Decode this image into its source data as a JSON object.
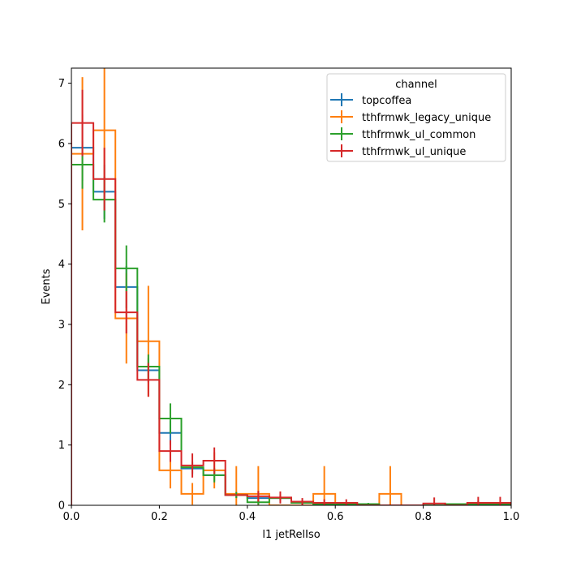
{
  "chart_data": {
    "type": "histogram",
    "xlabel": "l1 jetRelIso",
    "ylabel": "Events",
    "xlim": [
      0,
      1.0
    ],
    "ylim": [
      0,
      7.25
    ],
    "xticks": [
      0,
      0.2,
      0.4,
      0.6,
      0.8,
      1.0
    ],
    "xtick_labels": [
      "0.0",
      "0.2",
      "0.4",
      "0.6",
      "0.8",
      "1.0"
    ],
    "yticks": [
      0,
      1,
      2,
      3,
      4,
      5,
      6,
      7
    ],
    "ytick_labels": [
      "0",
      "1",
      "2",
      "3",
      "4",
      "5",
      "6",
      "7"
    ],
    "bin_edges": [
      0.0,
      0.05,
      0.1,
      0.15,
      0.2,
      0.25,
      0.3,
      0.35,
      0.4,
      0.45,
      0.5,
      0.55,
      0.6,
      0.65,
      0.7,
      0.75,
      0.8,
      0.85,
      0.9,
      0.95,
      1.0
    ],
    "legend": {
      "title": "channel",
      "location": "upper right"
    },
    "series": [
      {
        "name": "topcoffea",
        "color": "#1f77b4",
        "values": [
          5.93,
          5.2,
          3.62,
          2.24,
          1.2,
          0.61,
          0.5,
          0.17,
          0.12,
          0.12,
          0.04,
          0.02,
          0.02,
          0.0,
          0.0,
          0.0,
          0.0,
          0.0,
          0.02,
          0.02
        ],
        "errors": [
          0.55,
          0.45,
          0.35,
          0.2,
          0.2,
          0.1,
          0.1,
          0.05,
          0.05,
          0.04,
          0.03,
          0.02,
          0.02,
          0.0,
          0.0,
          0.0,
          0.0,
          0.0,
          0.02,
          0.02
        ]
      },
      {
        "name": "tthfrmwk_legacy_unique",
        "color": "#ff7f0e",
        "values": [
          5.83,
          6.22,
          3.1,
          2.72,
          0.58,
          0.19,
          0.58,
          0.19,
          0.19,
          0.0,
          0.0,
          0.19,
          0.0,
          0.0,
          0.19,
          0.0,
          0.0,
          0.0,
          0.0,
          0.0
        ],
        "errors": [
          1.27,
          1.05,
          0.75,
          0.92,
          0.3,
          0.18,
          0.3,
          0.46,
          0.46,
          0.0,
          0.0,
          0.46,
          0.0,
          0.0,
          0.46,
          0.0,
          0.0,
          0.0,
          0.0,
          0.0
        ]
      },
      {
        "name": "tthfrmwk_ul_common",
        "color": "#2ca02c",
        "values": [
          5.65,
          5.07,
          3.93,
          2.3,
          1.44,
          0.63,
          0.5,
          0.17,
          0.05,
          0.12,
          0.04,
          0.02,
          0.02,
          0.02,
          0.0,
          0.0,
          0.0,
          0.02,
          0.02,
          0.02
        ],
        "errors": [
          0.4,
          0.38,
          0.38,
          0.2,
          0.25,
          0.1,
          0.12,
          0.05,
          0.04,
          0.04,
          0.03,
          0.02,
          0.02,
          0.02,
          0.0,
          0.0,
          0.0,
          0.03,
          0.05,
          0.02
        ],
        "draw_errors": [
          1,
          1,
          1,
          1,
          1,
          1,
          1,
          1,
          1,
          1,
          1,
          1,
          1,
          1,
          0,
          0,
          0,
          0,
          1,
          0
        ]
      },
      {
        "name": "tthfrmwk_ul_unique",
        "color": "#d62728",
        "values": [
          6.34,
          5.41,
          3.2,
          2.08,
          0.9,
          0.66,
          0.74,
          0.17,
          0.15,
          0.13,
          0.06,
          0.04,
          0.04,
          0.0,
          0.0,
          0.0,
          0.03,
          0.0,
          0.04,
          0.04
        ],
        "errors": [
          0.55,
          0.52,
          0.35,
          0.28,
          0.18,
          0.2,
          0.22,
          0.05,
          0.09,
          0.1,
          0.06,
          0.06,
          0.06,
          0.0,
          0.0,
          0.0,
          0.1,
          0.0,
          0.1,
          0.1
        ],
        "draw_errors": [
          1,
          1,
          1,
          1,
          1,
          1,
          1,
          0,
          1,
          1,
          1,
          1,
          1,
          0,
          0,
          0,
          1,
          0,
          1,
          1
        ]
      }
    ]
  }
}
